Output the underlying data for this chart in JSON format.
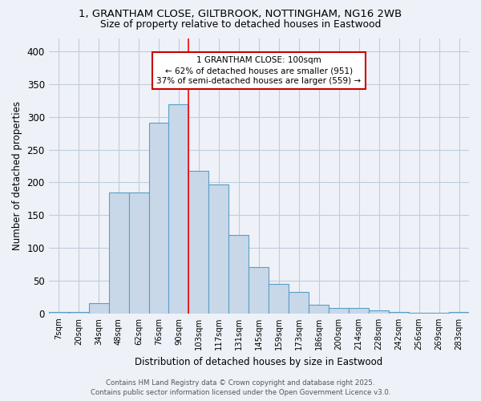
{
  "title_line1": "1, GRANTHAM CLOSE, GILTBROOK, NOTTINGHAM, NG16 2WB",
  "title_line2": "Size of property relative to detached houses in Eastwood",
  "xlabel": "Distribution of detached houses by size in Eastwood",
  "ylabel": "Number of detached properties",
  "bar_labels": [
    "7sqm",
    "20sqm",
    "34sqm",
    "48sqm",
    "62sqm",
    "76sqm",
    "90sqm",
    "103sqm",
    "117sqm",
    "131sqm",
    "145sqm",
    "159sqm",
    "173sqm",
    "186sqm",
    "200sqm",
    "214sqm",
    "228sqm",
    "242sqm",
    "256sqm",
    "269sqm",
    "283sqm"
  ],
  "bar_values": [
    2,
    2,
    16,
    184,
    184,
    291,
    319,
    218,
    197,
    120,
    71,
    45,
    33,
    13,
    8,
    8,
    5,
    2,
    1,
    1,
    2
  ],
  "bar_color": "#c8d8e8",
  "bar_edge_color": "#5a9ec8",
  "annotation_title": "1 GRANTHAM CLOSE: 100sqm",
  "annotation_line2": "← 62% of detached houses are smaller (951)",
  "annotation_line3": "37% of semi-detached houses are larger (559) →",
  "annotation_box_color": "#ffffff",
  "annotation_box_edge_color": "#cc0000",
  "ylim_max": 420,
  "grid_color": "#c0ccdd",
  "background_color": "#eef2f8",
  "footer_line1": "Contains HM Land Registry data © Crown copyright and database right 2025.",
  "footer_line2": "Contains public sector information licensed under the Open Government Licence v3.0."
}
